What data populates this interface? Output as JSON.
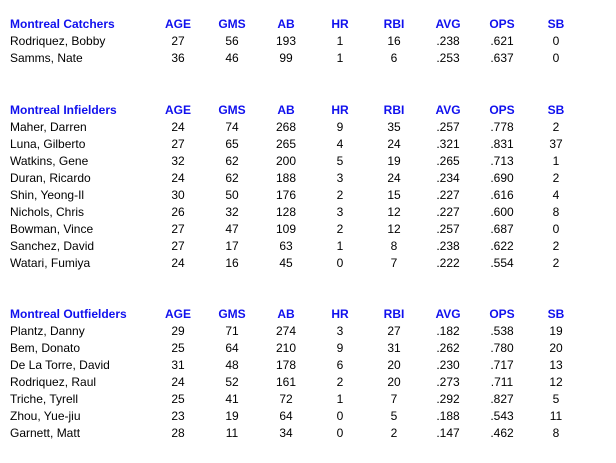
{
  "columns": [
    "AGE",
    "GMS",
    "AB",
    "HR",
    "RBI",
    "AVG",
    "OPS",
    "SB"
  ],
  "sections": [
    {
      "title": "Montreal Catchers",
      "rows": [
        [
          "Rodriquez, Bobby",
          "27",
          "56",
          "193",
          "1",
          "16",
          ".238",
          ".621",
          "0"
        ],
        [
          "Samms, Nate",
          "36",
          "46",
          "99",
          "1",
          "6",
          ".253",
          ".637",
          "0"
        ]
      ]
    },
    {
      "title": "Montreal Infielders",
      "rows": [
        [
          "Maher, Darren",
          "24",
          "74",
          "268",
          "9",
          "35",
          ".257",
          ".778",
          "2"
        ],
        [
          "Luna, Gilberto",
          "27",
          "65",
          "265",
          "4",
          "24",
          ".321",
          ".831",
          "37"
        ],
        [
          "Watkins, Gene",
          "32",
          "62",
          "200",
          "5",
          "19",
          ".265",
          ".713",
          "1"
        ],
        [
          "Duran, Ricardo",
          "24",
          "62",
          "188",
          "3",
          "24",
          ".234",
          ".690",
          "2"
        ],
        [
          "Shin, Yeong-Il",
          "30",
          "50",
          "176",
          "2",
          "15",
          ".227",
          ".616",
          "4"
        ],
        [
          "Nichols, Chris",
          "26",
          "32",
          "128",
          "3",
          "12",
          ".227",
          ".600",
          "8"
        ],
        [
          "Bowman, Vince",
          "27",
          "47",
          "109",
          "2",
          "12",
          ".257",
          ".687",
          "0"
        ],
        [
          "Sanchez, David",
          "27",
          "17",
          "63",
          "1",
          "8",
          ".238",
          ".622",
          "2"
        ],
        [
          "Watari, Fumiya",
          "24",
          "16",
          "45",
          "0",
          "7",
          ".222",
          ".554",
          "2"
        ]
      ]
    },
    {
      "title": "Montreal Outfielders",
      "rows": [
        [
          "Plantz, Danny",
          "29",
          "71",
          "274",
          "3",
          "27",
          ".182",
          ".538",
          "19"
        ],
        [
          "Bem, Donato",
          "25",
          "64",
          "210",
          "9",
          "31",
          ".262",
          ".780",
          "20"
        ],
        [
          "De La Torre, David",
          "31",
          "48",
          "178",
          "6",
          "20",
          ".230",
          ".717",
          "13"
        ],
        [
          "Rodriquez, Raul",
          "24",
          "52",
          "161",
          "2",
          "20",
          ".273",
          ".711",
          "12"
        ],
        [
          "Triche, Tyrell",
          "25",
          "41",
          "72",
          "1",
          "7",
          ".292",
          ".827",
          "5"
        ],
        [
          "Zhou, Yue-jiu",
          "23",
          "19",
          "64",
          "0",
          "5",
          ".188",
          ".543",
          "11"
        ],
        [
          "Garnett, Matt",
          "28",
          "11",
          "34",
          "0",
          "2",
          ".147",
          ".462",
          "8"
        ]
      ]
    }
  ]
}
